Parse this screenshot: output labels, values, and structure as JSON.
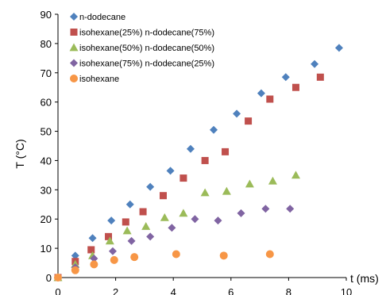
{
  "chart_data": {
    "type": "scatter",
    "title": "",
    "xlabel": "t (ms)",
    "ylabel": "T (°C)",
    "xlim": [
      0,
      10
    ],
    "ylim": [
      0,
      90
    ],
    "xticks": [
      0,
      2,
      4,
      6,
      8,
      10
    ],
    "yticks": [
      0,
      10,
      20,
      30,
      40,
      50,
      60,
      70,
      80,
      90
    ],
    "grid": false,
    "legend_position": "top-left",
    "series": [
      {
        "name": "n-dodecane",
        "marker": "diamond",
        "color": "#4F81BD",
        "x": [
          0.0,
          0.6,
          1.2,
          1.85,
          2.5,
          3.2,
          3.9,
          4.6,
          5.4,
          6.2,
          7.05,
          7.9,
          8.9,
          9.75
        ],
        "y": [
          0.0,
          7.5,
          13.5,
          19.5,
          25.0,
          31.0,
          36.5,
          44.0,
          50.5,
          56.0,
          63.0,
          68.5,
          73.0,
          78.5
        ]
      },
      {
        "name": "isohexane(25%) n-dodecane(75%)",
        "marker": "square",
        "color": "#C0504D",
        "x": [
          0.0,
          0.6,
          1.15,
          1.75,
          2.35,
          2.95,
          3.65,
          4.35,
          5.1,
          5.8,
          6.6,
          7.35,
          8.25,
          9.1
        ],
        "y": [
          0.0,
          5.5,
          9.5,
          14.0,
          19.0,
          22.5,
          28.0,
          34.0,
          40.0,
          43.0,
          53.5,
          61.0,
          65.0,
          68.5
        ]
      },
      {
        "name": "isohexane(50%) n-dodecane(50%)",
        "marker": "triangle",
        "color": "#9BBB59",
        "x": [
          0.0,
          0.6,
          1.2,
          1.8,
          2.4,
          3.05,
          3.7,
          4.35,
          5.1,
          5.85,
          6.65,
          7.45,
          8.25
        ],
        "y": [
          0.0,
          4.5,
          7.5,
          12.5,
          16.0,
          17.5,
          20.5,
          22.0,
          29.0,
          29.5,
          32.0,
          33.0,
          35.0
        ]
      },
      {
        "name": "isohexane(75%) n-dodecane(25%)",
        "marker": "diamond",
        "color": "#8064A2",
        "x": [
          0.0,
          0.6,
          1.25,
          1.9,
          2.55,
          3.2,
          3.95,
          4.75,
          5.55,
          6.35,
          7.2,
          8.05
        ],
        "y": [
          0.0,
          3.5,
          6.5,
          9.0,
          12.5,
          14.0,
          17.0,
          20.0,
          19.5,
          22.0,
          23.5,
          23.5
        ]
      },
      {
        "name": "isohexane",
        "marker": "circle",
        "color": "#F79646",
        "x": [
          0.0,
          0.6,
          1.25,
          1.95,
          2.65,
          4.1,
          5.75,
          7.35
        ],
        "y": [
          0.0,
          2.5,
          4.5,
          6.0,
          7.0,
          8.0,
          7.5,
          8.0
        ]
      }
    ]
  }
}
